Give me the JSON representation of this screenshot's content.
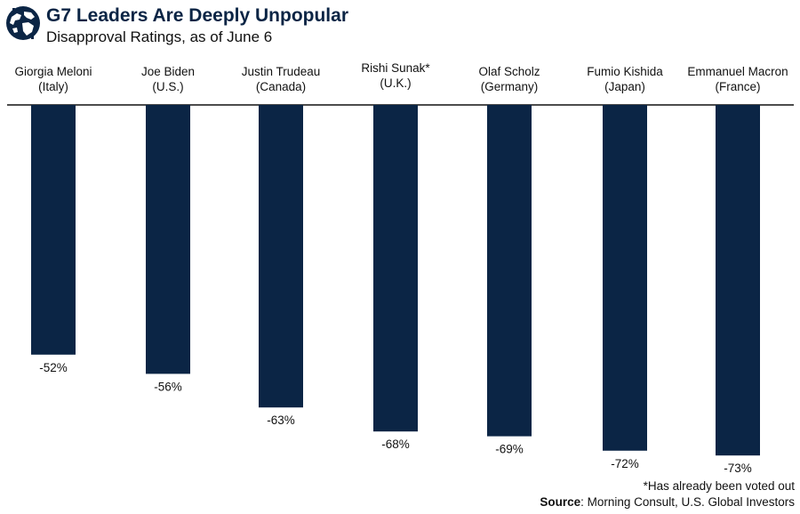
{
  "chart_data": {
    "type": "bar",
    "title": "G7 Leaders Are Deeply Unpopular",
    "subtitle": "Disapproval Ratings, as of June 6",
    "categories": [
      {
        "name": "Giorgia Meloni",
        "country": "(Italy)"
      },
      {
        "name": "Joe Biden",
        "country": "(U.S.)"
      },
      {
        "name": "Justin Trudeau",
        "country": "(Canada)"
      },
      {
        "name": "Rishi Sunak*",
        "country": "(U.K.)"
      },
      {
        "name": "Olaf Scholz",
        "country": "(Germany)"
      },
      {
        "name": "Fumio Kishida",
        "country": "(Japan)"
      },
      {
        "name": "Emmanuel Macron",
        "country": "(France)"
      }
    ],
    "values": [
      -52,
      -56,
      -63,
      -68,
      -69,
      -72,
      -73
    ],
    "data_labels": [
      "-52%",
      "-56%",
      "-63%",
      "-68%",
      "-69%",
      "-72%",
      "-73%"
    ],
    "ylim": [
      -73,
      0
    ],
    "xlabel": "",
    "ylabel": "",
    "grid": false,
    "bar_color": "#0b2545"
  },
  "footnote": "*Has already been voted out",
  "source": {
    "label": "Source",
    "text": ": Morning Consult, U.S. Global Investors"
  },
  "logo": {
    "icon": "globe-icon"
  },
  "colors": {
    "title": "#0b2545",
    "bars": "#0b2545",
    "text": "#111111"
  }
}
